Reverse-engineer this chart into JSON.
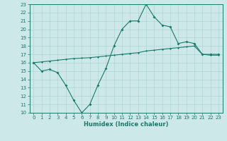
{
  "xlabel": "Humidex (Indice chaleur)",
  "bg_color": "#cce8e8",
  "line_color": "#1a7a6a",
  "grid_color": "#b0d4d4",
  "x_values": [
    0,
    1,
    2,
    3,
    4,
    5,
    6,
    7,
    8,
    9,
    10,
    11,
    12,
    13,
    14,
    15,
    16,
    17,
    18,
    19,
    20,
    21,
    22,
    23
  ],
  "humidex_values": [
    16.0,
    15.0,
    15.2,
    14.8,
    13.3,
    11.5,
    10.0,
    11.0,
    13.3,
    15.3,
    18.0,
    20.0,
    21.0,
    21.0,
    23.0,
    21.5,
    20.5,
    20.3,
    18.3,
    18.5,
    18.3,
    17.0,
    17.0,
    17.0
  ],
  "linear_values": [
    16.0,
    16.1,
    16.2,
    16.3,
    16.4,
    16.5,
    16.55,
    16.6,
    16.7,
    16.8,
    16.9,
    17.0,
    17.1,
    17.2,
    17.4,
    17.5,
    17.6,
    17.7,
    17.8,
    17.9,
    18.0,
    17.0,
    16.9,
    16.9
  ],
  "ylim": [
    10,
    23
  ],
  "xlim": [
    -0.5,
    23.5
  ],
  "yticks": [
    10,
    11,
    12,
    13,
    14,
    15,
    16,
    17,
    18,
    19,
    20,
    21,
    22,
    23
  ],
  "xticks": [
    0,
    1,
    2,
    3,
    4,
    5,
    6,
    7,
    8,
    9,
    10,
    11,
    12,
    13,
    14,
    15,
    16,
    17,
    18,
    19,
    20,
    21,
    22,
    23
  ],
  "xticklabels": [
    "0",
    "1",
    "2",
    "3",
    "4",
    "5",
    "6",
    "7",
    "8",
    "9",
    "10",
    "11",
    "12",
    "13",
    "14",
    "15",
    "16",
    "17",
    "18",
    "19",
    "20",
    "21",
    "22",
    "23"
  ],
  "yticklabels": [
    "10",
    "11",
    "12",
    "13",
    "14",
    "15",
    "16",
    "17",
    "18",
    "19",
    "20",
    "21",
    "22",
    "23"
  ],
  "tick_fontsize": 5.0,
  "xlabel_fontsize": 6.0,
  "linewidth": 0.8,
  "marker_size_humidex": 2.0,
  "marker_size_linear": 1.5
}
